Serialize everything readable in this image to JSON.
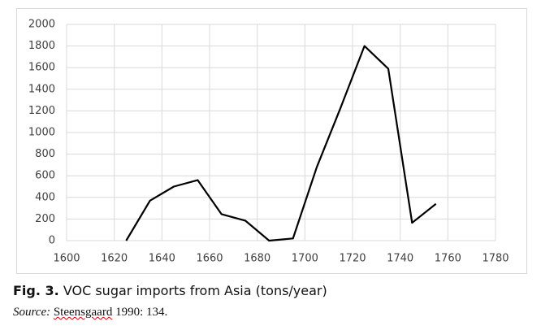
{
  "chart_data": {
    "type": "line",
    "x": [
      1625,
      1635,
      1645,
      1655,
      1665,
      1675,
      1685,
      1695,
      1705,
      1715,
      1725,
      1735,
      1745,
      1755
    ],
    "series": [
      {
        "color": "#000000",
        "values": [
          0,
          370,
          500,
          560,
          245,
          185,
          0,
          20,
          680,
          1230,
          1800,
          1590,
          165,
          340
        ]
      }
    ],
    "xlim": [
      1600,
      1780
    ],
    "ylim": [
      0,
      2000
    ],
    "xticks": [
      1600,
      1620,
      1640,
      1660,
      1680,
      1700,
      1720,
      1740,
      1760,
      1780
    ],
    "yticks": [
      0,
      200,
      400,
      600,
      800,
      1000,
      1200,
      1400,
      1600,
      1800,
      2000
    ],
    "grid": true
  },
  "caption": {
    "label": "Fig. 3.",
    "text": "VOC sugar imports from Asia (tons/year)"
  },
  "source": {
    "label": "Source:",
    "text": "Steensgaard 1990: 134."
  }
}
